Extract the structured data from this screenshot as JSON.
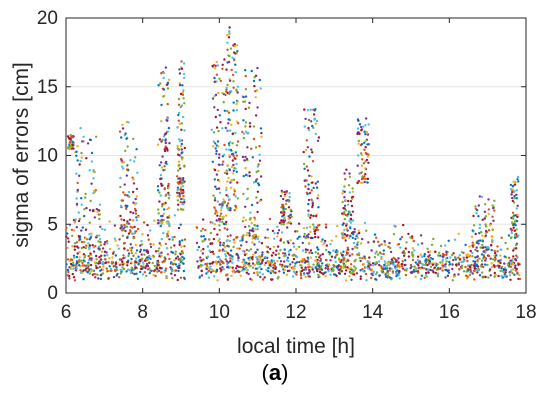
{
  "chart_data": {
    "type": "scatter",
    "title": "",
    "xlabel": "local time [h]",
    "ylabel": "sigma of errors [cm]",
    "xlim": [
      6,
      18
    ],
    "ylim": [
      0,
      20
    ],
    "xticks": [
      6,
      8,
      10,
      12,
      14,
      16,
      18
    ],
    "yticks": [
      0,
      5,
      10,
      15,
      20
    ],
    "grid": true,
    "legend": "none",
    "series_colors": [
      "#0072BD",
      "#D95319",
      "#EDB120",
      "#7E2F8E",
      "#77AC30",
      "#4DBEEE",
      "#A2142F"
    ],
    "trend_points": [
      [
        6.0,
        3.0
      ],
      [
        6.3,
        3.5
      ],
      [
        6.6,
        2.8
      ],
      [
        7.0,
        2.6
      ],
      [
        7.4,
        3.0
      ],
      [
        7.8,
        3.2
      ],
      [
        8.2,
        2.9
      ],
      [
        8.6,
        3.6
      ],
      [
        9.0,
        3.4
      ],
      [
        9.5,
        2.8
      ],
      [
        10.0,
        3.1
      ],
      [
        10.5,
        2.9
      ],
      [
        11.0,
        2.6
      ],
      [
        11.5,
        2.9
      ],
      [
        12.0,
        3.0
      ],
      [
        12.5,
        2.7
      ],
      [
        13.0,
        2.5
      ],
      [
        13.5,
        2.8
      ],
      [
        14.0,
        2.6
      ],
      [
        14.5,
        2.3
      ],
      [
        15.0,
        2.2
      ],
      [
        15.5,
        2.0
      ],
      [
        16.0,
        1.9
      ],
      [
        16.5,
        1.8
      ],
      [
        17.0,
        1.9
      ],
      [
        17.5,
        1.7
      ],
      [
        17.8,
        1.6
      ]
    ],
    "bursts": [
      {
        "x": [
          6.05,
          6.2
        ],
        "low": 10.5,
        "high": 11.5
      },
      {
        "x": [
          6.2,
          6.9
        ],
        "low": 3.0,
        "high": 12.0
      },
      {
        "x": [
          7.4,
          7.9
        ],
        "low": 4.0,
        "high": 12.5
      },
      {
        "x": [
          8.4,
          8.7
        ],
        "low": 5.0,
        "high": 16.5
      },
      {
        "x": [
          8.9,
          9.1
        ],
        "low": 6.0,
        "high": 17.2
      },
      {
        "x": [
          9.8,
          10.2
        ],
        "low": 5.0,
        "high": 17.0
      },
      {
        "x": [
          10.2,
          10.5
        ],
        "low": 6.0,
        "high": 19.8
      },
      {
        "x": [
          10.6,
          11.1
        ],
        "low": 4.0,
        "high": 16.5
      },
      {
        "x": [
          11.6,
          11.9
        ],
        "low": 5.0,
        "high": 7.5
      },
      {
        "x": [
          12.2,
          12.6
        ],
        "low": 4.0,
        "high": 13.5
      },
      {
        "x": [
          13.2,
          13.5
        ],
        "low": 4.0,
        "high": 9.0
      },
      {
        "x": [
          13.6,
          13.9
        ],
        "low": 8.0,
        "high": 12.8
      },
      {
        "x": [
          16.6,
          17.2
        ],
        "low": 3.0,
        "high": 7.2
      },
      {
        "x": [
          17.6,
          17.8
        ],
        "low": 4.0,
        "high": 8.5
      }
    ]
  },
  "caption": {
    "open": "(",
    "label": "a",
    "close": ")"
  }
}
